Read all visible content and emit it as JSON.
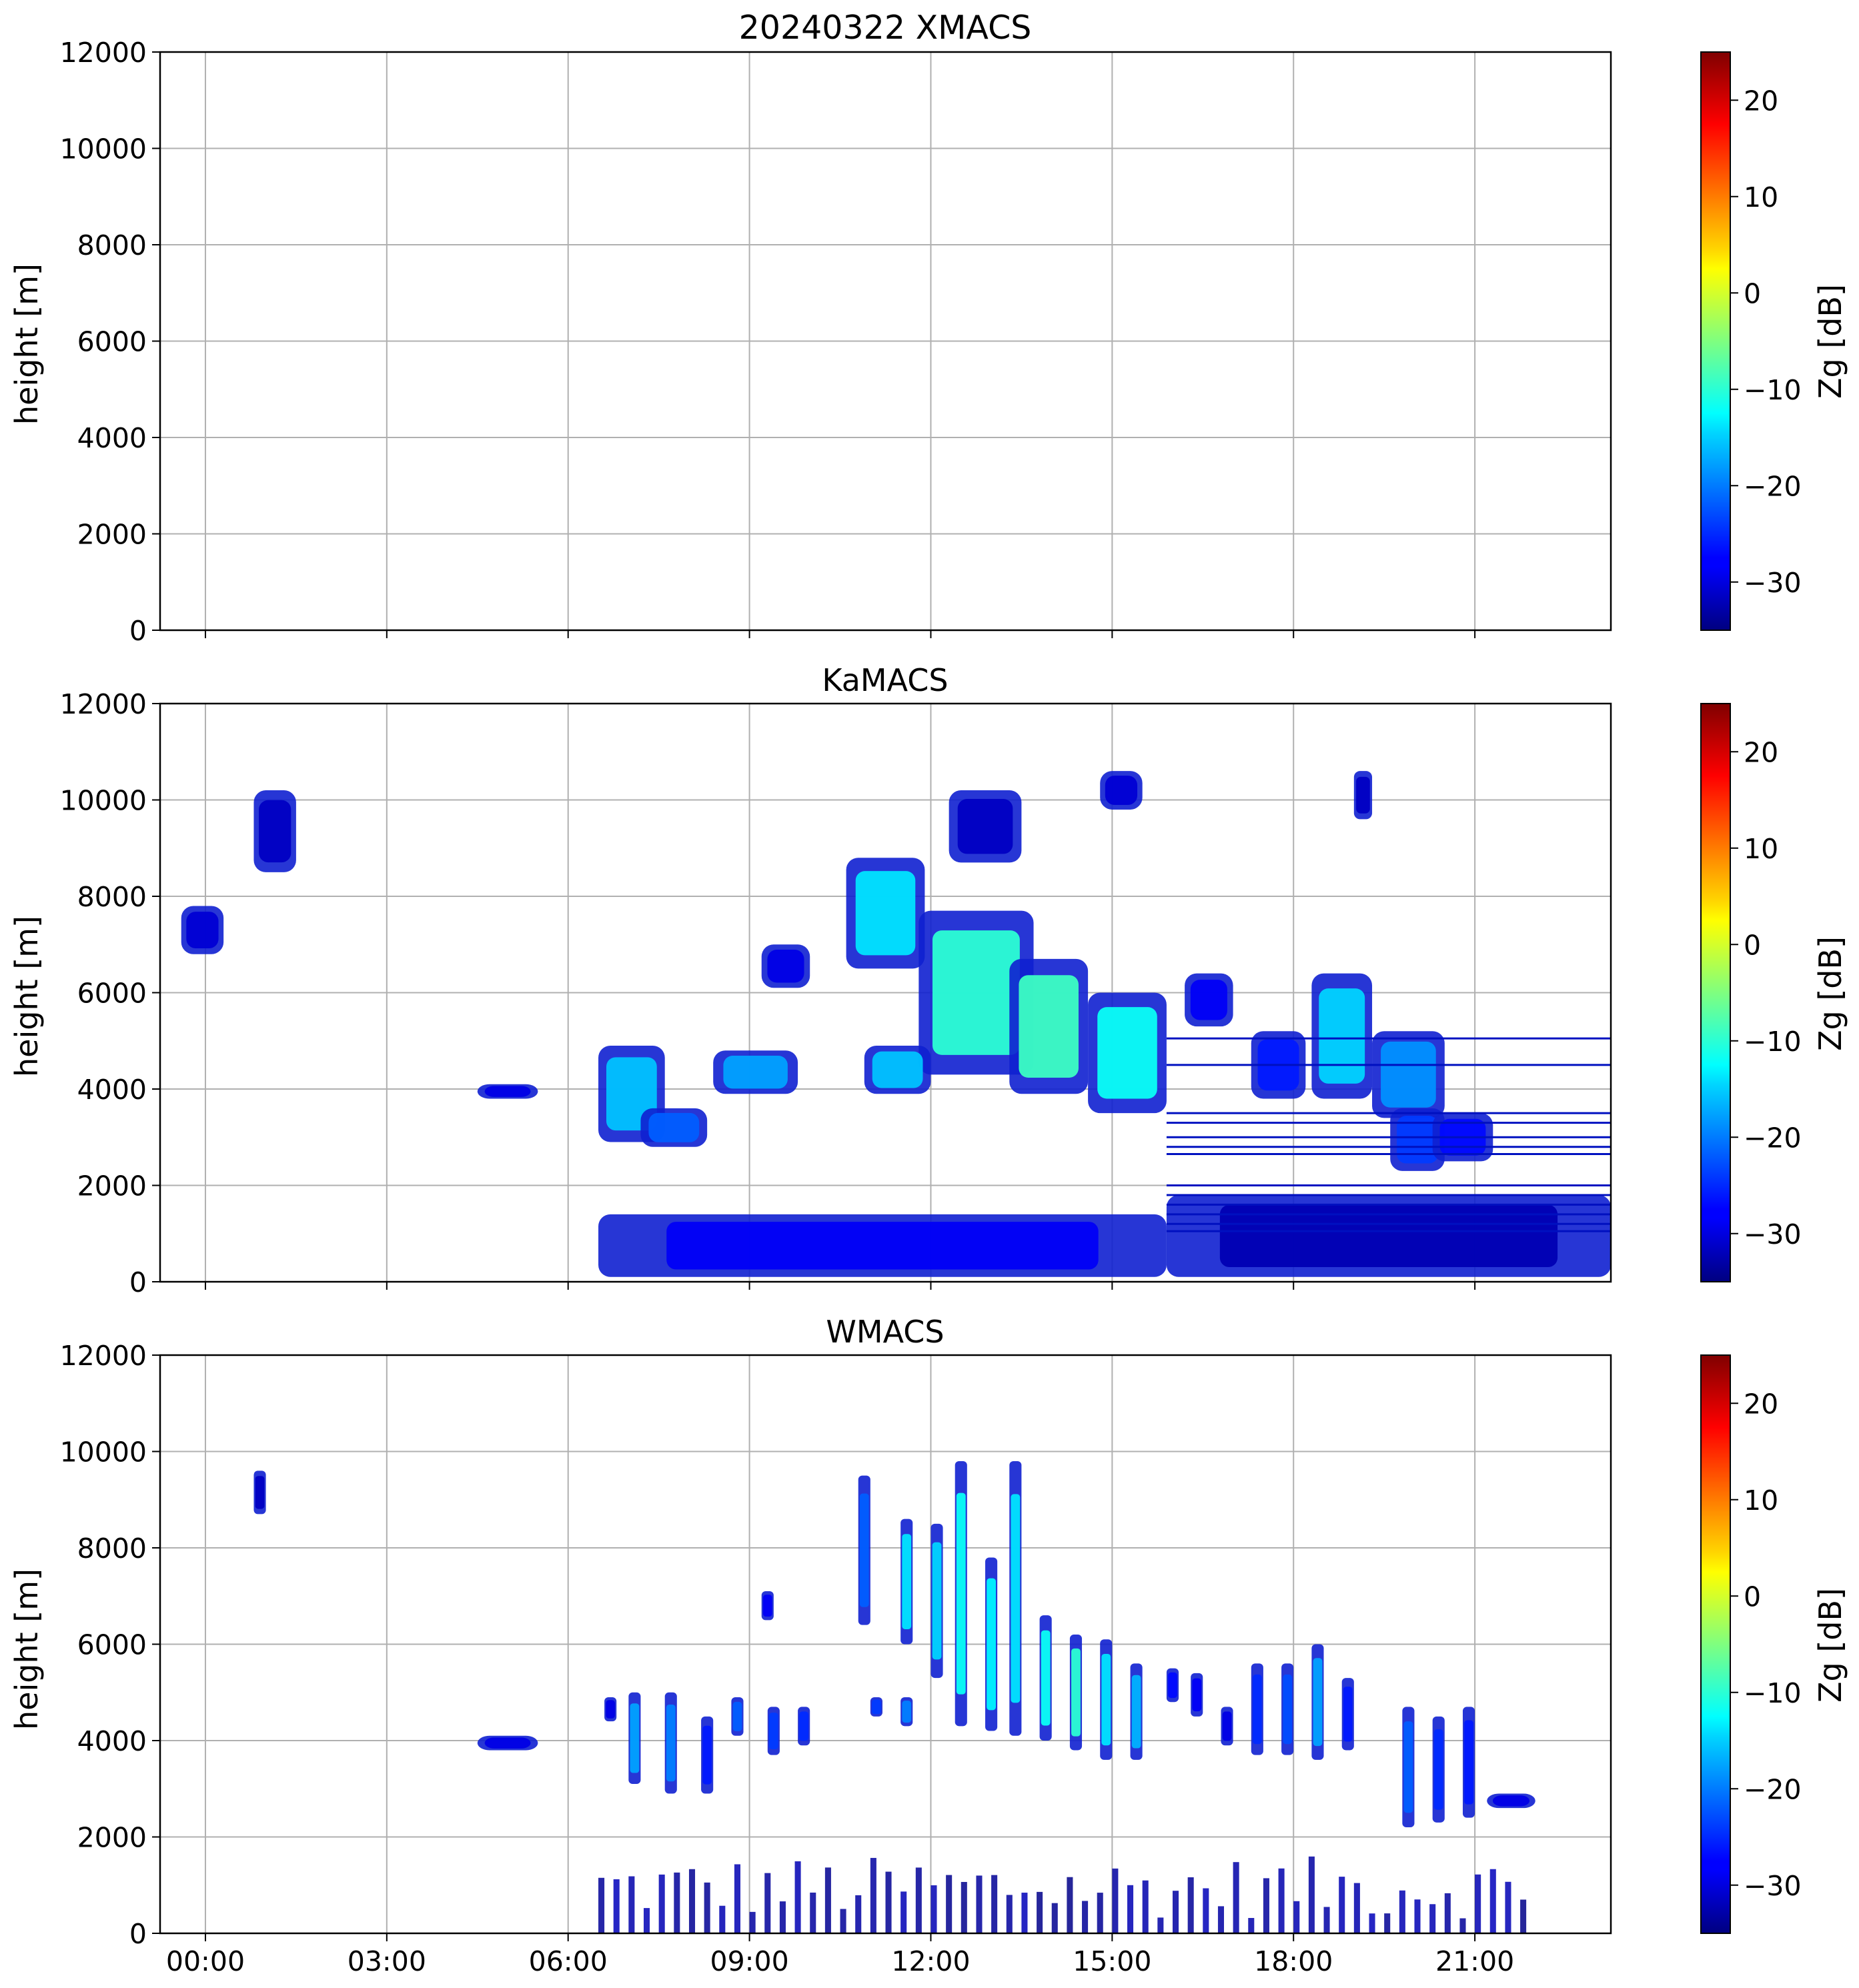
{
  "chart_data": [
    {
      "type": "heatmap",
      "title": "20240322 XMACS",
      "ylabel": "height [m]",
      "xlabel": "",
      "ylim": [
        0,
        12000
      ],
      "yticks": [
        0,
        2000,
        4000,
        6000,
        8000,
        10000,
        12000
      ],
      "xlim_hours": [
        -0.75,
        23.25
      ],
      "xticks_hours": [
        0,
        3,
        6,
        9,
        12,
        15,
        18,
        21
      ],
      "xtick_labels": [],
      "grid": true,
      "colorbar": {
        "label": "Zg [dB]",
        "range": [
          -35,
          25
        ],
        "ticks": [
          20,
          10,
          0,
          -10,
          -20,
          -30
        ],
        "colormap": "jet"
      },
      "regions": []
    },
    {
      "type": "heatmap",
      "title": "KaMACS",
      "ylabel": "height [m]",
      "xlabel": "",
      "ylim": [
        0,
        12000
      ],
      "yticks": [
        0,
        2000,
        4000,
        6000,
        8000,
        10000,
        12000
      ],
      "xlim_hours": [
        -0.75,
        23.25
      ],
      "xticks_hours": [
        0,
        3,
        6,
        9,
        12,
        15,
        18,
        21
      ],
      "xtick_labels": [],
      "grid": true,
      "colorbar": {
        "label": "Zg [dB]",
        "range": [
          -35,
          25
        ],
        "ticks": [
          20,
          10,
          0,
          -10,
          -20,
          -30
        ],
        "colormap": "jet"
      },
      "regions": [
        {
          "t0": -0.4,
          "t1": 0.3,
          "h0": 6800,
          "h1": 7800,
          "zg": -30
        },
        {
          "t0": 0.8,
          "t1": 1.5,
          "h0": 8500,
          "h1": 10200,
          "zg": -31
        },
        {
          "t0": 4.5,
          "t1": 5.5,
          "h0": 3800,
          "h1": 4100,
          "zg": -29
        },
        {
          "t0": 6.5,
          "t1": 7.6,
          "h0": 2900,
          "h1": 4900,
          "zg": -16
        },
        {
          "t0": 7.2,
          "t1": 8.3,
          "h0": 2800,
          "h1": 3600,
          "zg": -22
        },
        {
          "t0": 8.4,
          "t1": 9.8,
          "h0": 3900,
          "h1": 4800,
          "zg": -18
        },
        {
          "t0": 9.2,
          "t1": 10.0,
          "h0": 6100,
          "h1": 7000,
          "zg": -29
        },
        {
          "t0": 10.6,
          "t1": 11.9,
          "h0": 6500,
          "h1": 8800,
          "zg": -14
        },
        {
          "t0": 11.8,
          "t1": 13.7,
          "h0": 4300,
          "h1": 7700,
          "zg": -10
        },
        {
          "t0": 12.3,
          "t1": 13.5,
          "h0": 8700,
          "h1": 10200,
          "zg": -31
        },
        {
          "t0": 13.3,
          "t1": 14.6,
          "h0": 3900,
          "h1": 6700,
          "zg": -9
        },
        {
          "t0": 14.6,
          "t1": 15.9,
          "h0": 3500,
          "h1": 6000,
          "zg": -12
        },
        {
          "t0": 14.8,
          "t1": 15.5,
          "h0": 9800,
          "h1": 10600,
          "zg": -30
        },
        {
          "t0": 16.2,
          "t1": 17.0,
          "h0": 5300,
          "h1": 6400,
          "zg": -28
        },
        {
          "t0": 17.3,
          "t1": 18.2,
          "h0": 3800,
          "h1": 5200,
          "zg": -26
        },
        {
          "t0": 18.3,
          "t1": 19.3,
          "h0": 3800,
          "h1": 6400,
          "zg": -15
        },
        {
          "t0": 19.3,
          "t1": 20.5,
          "h0": 3400,
          "h1": 5200,
          "zg": -19
        },
        {
          "t0": 19.6,
          "t1": 20.5,
          "h0": 2300,
          "h1": 3600,
          "zg": -24
        },
        {
          "t0": 20.3,
          "t1": 21.3,
          "h0": 2500,
          "h1": 3500,
          "zg": -27
        },
        {
          "t0": 19.0,
          "t1": 19.3,
          "h0": 9600,
          "h1": 10600,
          "zg": -31
        },
        {
          "t0": 10.9,
          "t1": 12.0,
          "h0": 3900,
          "h1": 4900,
          "zg": -16
        },
        {
          "t0": 6.5,
          "t1": 15.9,
          "h0": 100,
          "h1": 1400,
          "zg": -28
        },
        {
          "t0": 15.9,
          "t1": 23.25,
          "h0": 100,
          "h1": 1800,
          "zg": -32
        }
      ]
    },
    {
      "type": "heatmap",
      "title": "WMACS",
      "ylabel": "height [m]",
      "xlabel": "",
      "ylim": [
        0,
        12000
      ],
      "yticks": [
        0,
        2000,
        4000,
        6000,
        8000,
        10000,
        12000
      ],
      "xlim_hours": [
        -0.75,
        23.25
      ],
      "xticks_hours": [
        0,
        3,
        6,
        9,
        12,
        15,
        18,
        21
      ],
      "xtick_labels": [
        "00:00",
        "03:00",
        "06:00",
        "09:00",
        "12:00",
        "15:00",
        "18:00",
        "21:00"
      ],
      "grid": true,
      "colorbar": {
        "label": "Zg [dB]",
        "range": [
          -35,
          25
        ],
        "ticks": [
          20,
          10,
          0,
          -10,
          -20,
          -30
        ],
        "colormap": "jet"
      },
      "regions": [
        {
          "t0": 0.8,
          "t1": 1.0,
          "h0": 8700,
          "h1": 9600,
          "zg": -31
        },
        {
          "t0": 4.5,
          "t1": 5.5,
          "h0": 3800,
          "h1": 4100,
          "zg": -29
        },
        {
          "t0": 6.6,
          "t1": 6.8,
          "h0": 4400,
          "h1": 4900,
          "zg": -29
        },
        {
          "t0": 7.0,
          "t1": 7.2,
          "h0": 3100,
          "h1": 5000,
          "zg": -18
        },
        {
          "t0": 7.6,
          "t1": 7.8,
          "h0": 2900,
          "h1": 5000,
          "zg": -20
        },
        {
          "t0": 8.2,
          "t1": 8.4,
          "h0": 2900,
          "h1": 4500,
          "zg": -26
        },
        {
          "t0": 8.7,
          "t1": 8.9,
          "h0": 4100,
          "h1": 4900,
          "zg": -22
        },
        {
          "t0": 9.3,
          "t1": 9.5,
          "h0": 3700,
          "h1": 4700,
          "zg": -24
        },
        {
          "t0": 9.2,
          "t1": 9.4,
          "h0": 6500,
          "h1": 7100,
          "zg": -28
        },
        {
          "t0": 9.8,
          "t1": 10.0,
          "h0": 3900,
          "h1": 4700,
          "zg": -25
        },
        {
          "t0": 10.8,
          "t1": 11.0,
          "h0": 6400,
          "h1": 9500,
          "zg": -22
        },
        {
          "t0": 11.0,
          "t1": 11.2,
          "h0": 4500,
          "h1": 4900,
          "zg": -24
        },
        {
          "t0": 11.5,
          "t1": 11.7,
          "h0": 6000,
          "h1": 8600,
          "zg": -14
        },
        {
          "t0": 11.5,
          "t1": 11.7,
          "h0": 4300,
          "h1": 4900,
          "zg": -20
        },
        {
          "t0": 12.0,
          "t1": 12.2,
          "h0": 5300,
          "h1": 8500,
          "zg": -15
        },
        {
          "t0": 12.4,
          "t1": 12.6,
          "h0": 4300,
          "h1": 9800,
          "zg": -12
        },
        {
          "t0": 12.9,
          "t1": 13.1,
          "h0": 4200,
          "h1": 7800,
          "zg": -13
        },
        {
          "t0": 13.3,
          "t1": 13.5,
          "h0": 4100,
          "h1": 9800,
          "zg": -14
        },
        {
          "t0": 13.8,
          "t1": 14.0,
          "h0": 4000,
          "h1": 6600,
          "zg": -12
        },
        {
          "t0": 14.3,
          "t1": 14.5,
          "h0": 3800,
          "h1": 6200,
          "zg": -10
        },
        {
          "t0": 14.8,
          "t1": 15.0,
          "h0": 3600,
          "h1": 6100,
          "zg": -14
        },
        {
          "t0": 15.3,
          "t1": 15.5,
          "h0": 3600,
          "h1": 5600,
          "zg": -17
        },
        {
          "t0": 15.9,
          "t1": 16.1,
          "h0": 4800,
          "h1": 5500,
          "zg": -27
        },
        {
          "t0": 16.3,
          "t1": 16.5,
          "h0": 4500,
          "h1": 5400,
          "zg": -28
        },
        {
          "t0": 16.8,
          "t1": 17.0,
          "h0": 3900,
          "h1": 4700,
          "zg": -29
        },
        {
          "t0": 17.3,
          "t1": 17.5,
          "h0": 3700,
          "h1": 5600,
          "zg": -25
        },
        {
          "t0": 17.8,
          "t1": 18.0,
          "h0": 3700,
          "h1": 5600,
          "zg": -23
        },
        {
          "t0": 18.3,
          "t1": 18.5,
          "h0": 3600,
          "h1": 6000,
          "zg": -18
        },
        {
          "t0": 18.8,
          "t1": 19.0,
          "h0": 3800,
          "h1": 5300,
          "zg": -26
        },
        {
          "t0": 19.8,
          "t1": 20.0,
          "h0": 2200,
          "h1": 4700,
          "zg": -22
        },
        {
          "t0": 20.3,
          "t1": 20.5,
          "h0": 2300,
          "h1": 4500,
          "zg": -25
        },
        {
          "t0": 20.8,
          "t1": 21.0,
          "h0": 2400,
          "h1": 4700,
          "zg": -26
        },
        {
          "t0": 21.2,
          "t1": 22.0,
          "h0": 2600,
          "h1": 2900,
          "zg": -29
        },
        {
          "t0": 6.5,
          "t1": 22.0,
          "h0": 0,
          "h1": 1500,
          "zg": -33,
          "pattern": "columns"
        }
      ]
    }
  ]
}
